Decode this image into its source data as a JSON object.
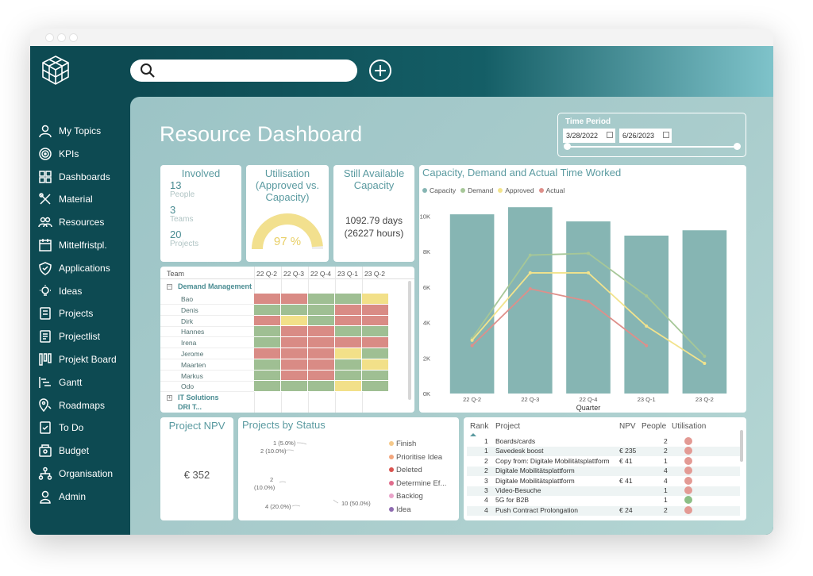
{
  "nav": [
    {
      "label": "My Topics",
      "icon": "person-icon"
    },
    {
      "label": "KPIs",
      "icon": "target-icon"
    },
    {
      "label": "Dashboards",
      "icon": "dashboard-icon"
    },
    {
      "label": "Material",
      "icon": "tools-icon"
    },
    {
      "label": "Resources",
      "icon": "people-icon"
    },
    {
      "label": "Mittelfristpl.",
      "icon": "calendar-icon"
    },
    {
      "label": "Applications",
      "icon": "shield-icon"
    },
    {
      "label": "Ideas",
      "icon": "lightbulb-icon"
    },
    {
      "label": "Projects",
      "icon": "projects-icon"
    },
    {
      "label": "Projectlist",
      "icon": "list-icon"
    },
    {
      "label": "Projekt Board",
      "icon": "board-icon"
    },
    {
      "label": "Gantt",
      "icon": "gantt-icon"
    },
    {
      "label": "Roadmaps",
      "icon": "map-pin-icon"
    },
    {
      "label": "To Do",
      "icon": "todo-icon"
    },
    {
      "label": "Budget",
      "icon": "budget-icon"
    },
    {
      "label": "Organisation",
      "icon": "org-icon"
    },
    {
      "label": "Admin",
      "icon": "admin-icon"
    }
  ],
  "search": {
    "placeholder": ""
  },
  "page": {
    "title": "Resource Dashboard"
  },
  "time_period": {
    "label": "Time Period",
    "start": "3/28/2022",
    "end": "6/26/2023"
  },
  "involved": {
    "title": "Involved",
    "people_count": "13",
    "people_label": "People",
    "teams_count": "3",
    "teams_label": "Teams",
    "projects_count": "20",
    "projects_label": "Projects"
  },
  "utilisation": {
    "title_l1": "Utilisation",
    "title_l2": "(Approved vs.",
    "title_l3": "Capacity)",
    "value_text": "97 %",
    "value": 0.97
  },
  "available": {
    "title_l1": "Still Available",
    "title_l2": "Capacity",
    "days": "1092.79 days",
    "hours": "(26227 hours)"
  },
  "heatmap": {
    "team_header": "Team",
    "columns": [
      "22 Q-2",
      "22 Q-3",
      "22 Q-4",
      "23 Q-1",
      "23 Q-2"
    ],
    "group1": "Demand Management",
    "group2": "IT Solutions",
    "group3": "DRI T...",
    "rows": [
      {
        "name": "Bao",
        "cells": [
          "r",
          "r",
          "g",
          "g",
          "y"
        ]
      },
      {
        "name": "Denis",
        "cells": [
          "g",
          "g",
          "g",
          "r",
          "r"
        ]
      },
      {
        "name": "Dirk",
        "cells": [
          "r",
          "y",
          "g",
          "r",
          "r"
        ]
      },
      {
        "name": "Hannes",
        "cells": [
          "g",
          "r",
          "r",
          "g",
          "g"
        ]
      },
      {
        "name": "Irena",
        "cells": [
          "g",
          "r",
          "r",
          "r",
          "r"
        ]
      },
      {
        "name": "Jerome",
        "cells": [
          "r",
          "r",
          "r",
          "y",
          "g"
        ]
      },
      {
        "name": "Maarten",
        "cells": [
          "g",
          "r",
          "r",
          "g",
          "y"
        ]
      },
      {
        "name": "Markus",
        "cells": [
          "g",
          "r",
          "r",
          "g",
          "g"
        ]
      },
      {
        "name": "Odo",
        "cells": [
          "g",
          "g",
          "g",
          "y",
          "g"
        ]
      }
    ]
  },
  "capacity_chart": {
    "title": "Capacity, Demand and Actual Time Worked",
    "legend": [
      "Capacity",
      "Demand",
      "Approved",
      "Actual"
    ],
    "colors": {
      "capacity": "#86b5b3",
      "demand": "#a6c798",
      "approved": "#f2e38c",
      "actual": "#de8f8a"
    },
    "xlabel": "Quarter",
    "y_ticks": [
      "0K",
      "2K",
      "4K",
      "6K",
      "8K",
      "10K"
    ]
  },
  "chart_data": {
    "type": "bar",
    "categories": [
      "22 Q-2",
      "22 Q-3",
      "22 Q-4",
      "23 Q-1",
      "23 Q-2"
    ],
    "series": [
      {
        "name": "Capacity",
        "type": "bar",
        "values": [
          10100,
          10500,
          9700,
          8900,
          9200
        ]
      },
      {
        "name": "Demand",
        "type": "line",
        "values": [
          3100,
          7800,
          7900,
          5500,
          2100
        ]
      },
      {
        "name": "Approved",
        "type": "line",
        "values": [
          3000,
          6800,
          6800,
          3800,
          1700
        ]
      },
      {
        "name": "Actual",
        "type": "line",
        "values": [
          2700,
          5900,
          5200,
          2700,
          null
        ]
      }
    ],
    "ylim": [
      0,
      11000
    ],
    "xlabel": "Quarter"
  },
  "npv": {
    "title": "Project NPV",
    "value": "€ 352"
  },
  "status": {
    "title": "Projects by Status",
    "labels": [
      "1 (5.0%)",
      "2 (10.0%)",
      "2",
      "(10.0%)",
      "4 (20.0%)",
      "10 (50.0%)"
    ],
    "legend": [
      "Finish",
      "Prioritise Idea",
      "Deleted",
      "Determine Ef...",
      "Backlog",
      "Idea"
    ],
    "colors": [
      "#f5c98a",
      "#f2a67d",
      "#d9534f",
      "#e06c8c",
      "#e9a3c9",
      "#8e6bb0"
    ]
  },
  "ranking": {
    "headers": [
      "Rank",
      "Project",
      "NPV",
      "People",
      "Utilisation"
    ],
    "rows": [
      {
        "rank": "1",
        "project": "Boards/cards",
        "npv": "",
        "people": "2",
        "util": "#e39a94"
      },
      {
        "rank": "1",
        "project": "Savedesk boost",
        "npv": "€ 235",
        "people": "2",
        "util": "#e39a94"
      },
      {
        "rank": "2",
        "project": "Copy from: Digitale Mobilitätsplattform",
        "npv": "€ 41",
        "people": "1",
        "util": "#e39a94"
      },
      {
        "rank": "2",
        "project": "Digitale Mobilitätsplattform",
        "npv": "",
        "people": "4",
        "util": "#e39a94"
      },
      {
        "rank": "3",
        "project": "Digitale Mobilitätsplattform",
        "npv": "€ 41",
        "people": "4",
        "util": "#e39a94"
      },
      {
        "rank": "3",
        "project": "Video-Besuche",
        "npv": "",
        "people": "1",
        "util": "#e39a94"
      },
      {
        "rank": "4",
        "project": "5G for B2B",
        "npv": "",
        "people": "1",
        "util": "#8cbf86"
      },
      {
        "rank": "4",
        "project": "Push Contract Prolongation",
        "npv": "€ 24",
        "people": "2",
        "util": "#e39a94"
      }
    ]
  }
}
